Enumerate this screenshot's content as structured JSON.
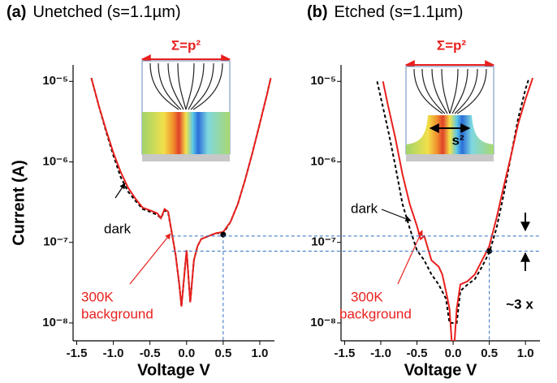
{
  "chart_data": [
    {
      "type": "line",
      "panel": "(a)",
      "title": "Unetched (s=1.1µm)",
      "xlabel": "Voltage V",
      "ylabel": "Current (A)",
      "xlim": [
        -1.55,
        1.2
      ],
      "ylim": [
        6e-09,
        1.6e-05
      ],
      "yscale": "log",
      "xticks": [
        {
          "value": -1.5,
          "label": "-1.5"
        },
        {
          "value": -1,
          "label": "-1.0"
        },
        {
          "value": -0.5,
          "label": "-0.5"
        },
        {
          "value": 0,
          "label": "0.0"
        },
        {
          "value": 0.5,
          "label": "0.5"
        },
        {
          "value": 1,
          "label": "1.0"
        }
      ],
      "yticks": [
        {
          "value": 1e-08,
          "label": "10⁻⁸"
        },
        {
          "value": 1e-07,
          "label": "10⁻⁷"
        },
        {
          "value": 1e-06,
          "label": "10⁻⁶"
        },
        {
          "value": 1e-05,
          "label": "10⁻⁵"
        }
      ],
      "series": [
        {
          "color": "#000000",
          "dash": true,
          "x": [
            -1.3,
            -1.2,
            -1.1,
            -1.0,
            -0.9,
            -0.8,
            -0.7,
            -0.6,
            -0.5,
            -0.4,
            -0.35,
            -0.3,
            -0.25,
            -0.2,
            -0.15,
            -0.1,
            -0.07,
            0.0,
            0.05,
            0.1,
            0.15,
            0.2,
            0.3,
            0.4,
            0.5,
            0.6,
            0.7,
            0.8,
            0.9,
            1.0,
            1.1,
            1.15
          ],
          "values": [
            1.1e-05,
            5e-06,
            2.4e-06,
            1.2e-06,
            6.5e-07,
            4.3e-07,
            3.3e-07,
            2.6e-07,
            2.4e-07,
            2.2e-07,
            2e-07,
            2.5e-07,
            2.3e-07,
            1.3e-07,
            7e-08,
            3e-08,
            1.6e-08,
            8e-08,
            1.8e-08,
            6e-08,
            9e-08,
            1.1e-07,
            1.2e-07,
            1.3e-07,
            1.3e-07,
            1.8e-07,
            3e-07,
            6e-07,
            1.3e-06,
            3e-06,
            7e-06,
            1.1e-05
          ]
        },
        {
          "color": "#e8201e",
          "dash": false,
          "x": [
            -1.3,
            -1.2,
            -1.1,
            -1.0,
            -0.9,
            -0.8,
            -0.7,
            -0.6,
            -0.5,
            -0.4,
            -0.35,
            -0.3,
            -0.25,
            -0.2,
            -0.15,
            -0.1,
            -0.07,
            0.0,
            0.05,
            0.1,
            0.15,
            0.2,
            0.3,
            0.4,
            0.5,
            0.6,
            0.7,
            0.8,
            0.9,
            1.0,
            1.1,
            1.15
          ],
          "values": [
            1.1e-05,
            5e-06,
            2.5e-06,
            1.3e-06,
            7.5e-07,
            4.8e-07,
            3.5e-07,
            2.7e-07,
            2.5e-07,
            2.3e-07,
            2e-07,
            2.6e-07,
            2.4e-07,
            1.3e-07,
            7e-08,
            3e-08,
            1.6e-08,
            8e-08,
            1.8e-08,
            6e-08,
            9e-08,
            1.1e-07,
            1.2e-07,
            1.3e-07,
            1.35e-07,
            1.8e-07,
            3e-07,
            6e-07,
            1.3e-06,
            3e-06,
            7e-06,
            1.1e-05
          ]
        }
      ],
      "hlines": [
        1.2e-07,
        7.8e-08
      ],
      "marker": {
        "x": 0.5,
        "y": 1.25e-07
      },
      "annotations": [
        {
          "text": "dark",
          "color": "#000000"
        },
        {
          "text": "300K",
          "color": "#e8201e"
        },
        {
          "text": "background",
          "color": "#e8201e"
        },
        {
          "text": "Σ=p²",
          "color": "#e8201e"
        }
      ]
    },
    {
      "type": "line",
      "panel": "(b)",
      "title": "Etched (s=1.1µm)",
      "xlabel": "Voltage V",
      "xlim": [
        -1.55,
        1.2
      ],
      "ylim": [
        6e-09,
        1.6e-05
      ],
      "yscale": "log",
      "xticks": [
        {
          "value": -1.5,
          "label": "-1.5"
        },
        {
          "value": -1,
          "label": "-1.0"
        },
        {
          "value": -0.5,
          "label": "-0.5"
        },
        {
          "value": 0,
          "label": "0.0"
        },
        {
          "value": 0.5,
          "label": "0.5"
        },
        {
          "value": 1,
          "label": "1.0"
        }
      ],
      "yticks": [
        {
          "value": 1e-08,
          "label": "10⁻⁸"
        },
        {
          "value": 1e-07,
          "label": "10⁻⁷"
        },
        {
          "value": 1e-06,
          "label": "10⁻⁶"
        },
        {
          "value": 1e-05,
          "label": "10⁻⁵"
        }
      ],
      "series": [
        {
          "color": "#000000",
          "dash": true,
          "x": [
            -1.05,
            -0.9,
            -0.8,
            -0.7,
            -0.6,
            -0.5,
            -0.4,
            -0.3,
            -0.2,
            -0.1,
            -0.05,
            0.05,
            0.1,
            0.2,
            0.3,
            0.4,
            0.5,
            0.6,
            0.7,
            0.8,
            0.9,
            1.0,
            1.05
          ],
          "values": [
            1e-05,
            2.5e-06,
            9e-07,
            3e-07,
            1.5e-07,
            8e-08,
            6e-08,
            4e-08,
            3e-08,
            2e-08,
            1e-08,
            1e-08,
            2.5e-08,
            3e-08,
            3.5e-08,
            5e-08,
            7.5e-08,
            1.5e-07,
            4e-07,
            1.2e-06,
            3.5e-06,
            8e-06,
            1.1e-05
          ]
        },
        {
          "color": "#e8201e",
          "dash": false,
          "x": [
            -0.97,
            -0.9,
            -0.8,
            -0.7,
            -0.6,
            -0.5,
            -0.45,
            -0.4,
            -0.3,
            -0.2,
            -0.15,
            -0.1,
            -0.05,
            -0.02,
            0.02,
            0.05,
            0.1,
            0.2,
            0.3,
            0.4,
            0.5,
            0.6,
            0.7,
            0.8,
            0.9,
            1.0,
            1.1
          ],
          "values": [
            1e-05,
            5e-06,
            2e-06,
            7e-07,
            3e-07,
            1.6e-07,
            1.1e-07,
            1.2e-07,
            6e-08,
            5e-08,
            4e-08,
            2.5e-08,
            1.5e-08,
            6e-09,
            6e-09,
            1.5e-08,
            3e-08,
            3.3e-08,
            4e-08,
            6e-08,
            9e-08,
            2e-07,
            5e-07,
            1.2e-06,
            3e-06,
            6e-06,
            1.1e-05
          ]
        }
      ],
      "marker": {
        "x": 0.5,
        "y": 7.8e-08
      },
      "annotations": [
        {
          "text": "dark",
          "color": "#000000"
        },
        {
          "text": "300K",
          "color": "#e8201e"
        },
        {
          "text": "background",
          "color": "#e8201e"
        },
        {
          "text": "Σ=p²",
          "color": "#e8201e"
        },
        {
          "text": "s²",
          "color": "#000000"
        },
        {
          "text": "~3 x",
          "color": "#000000"
        }
      ]
    }
  ]
}
